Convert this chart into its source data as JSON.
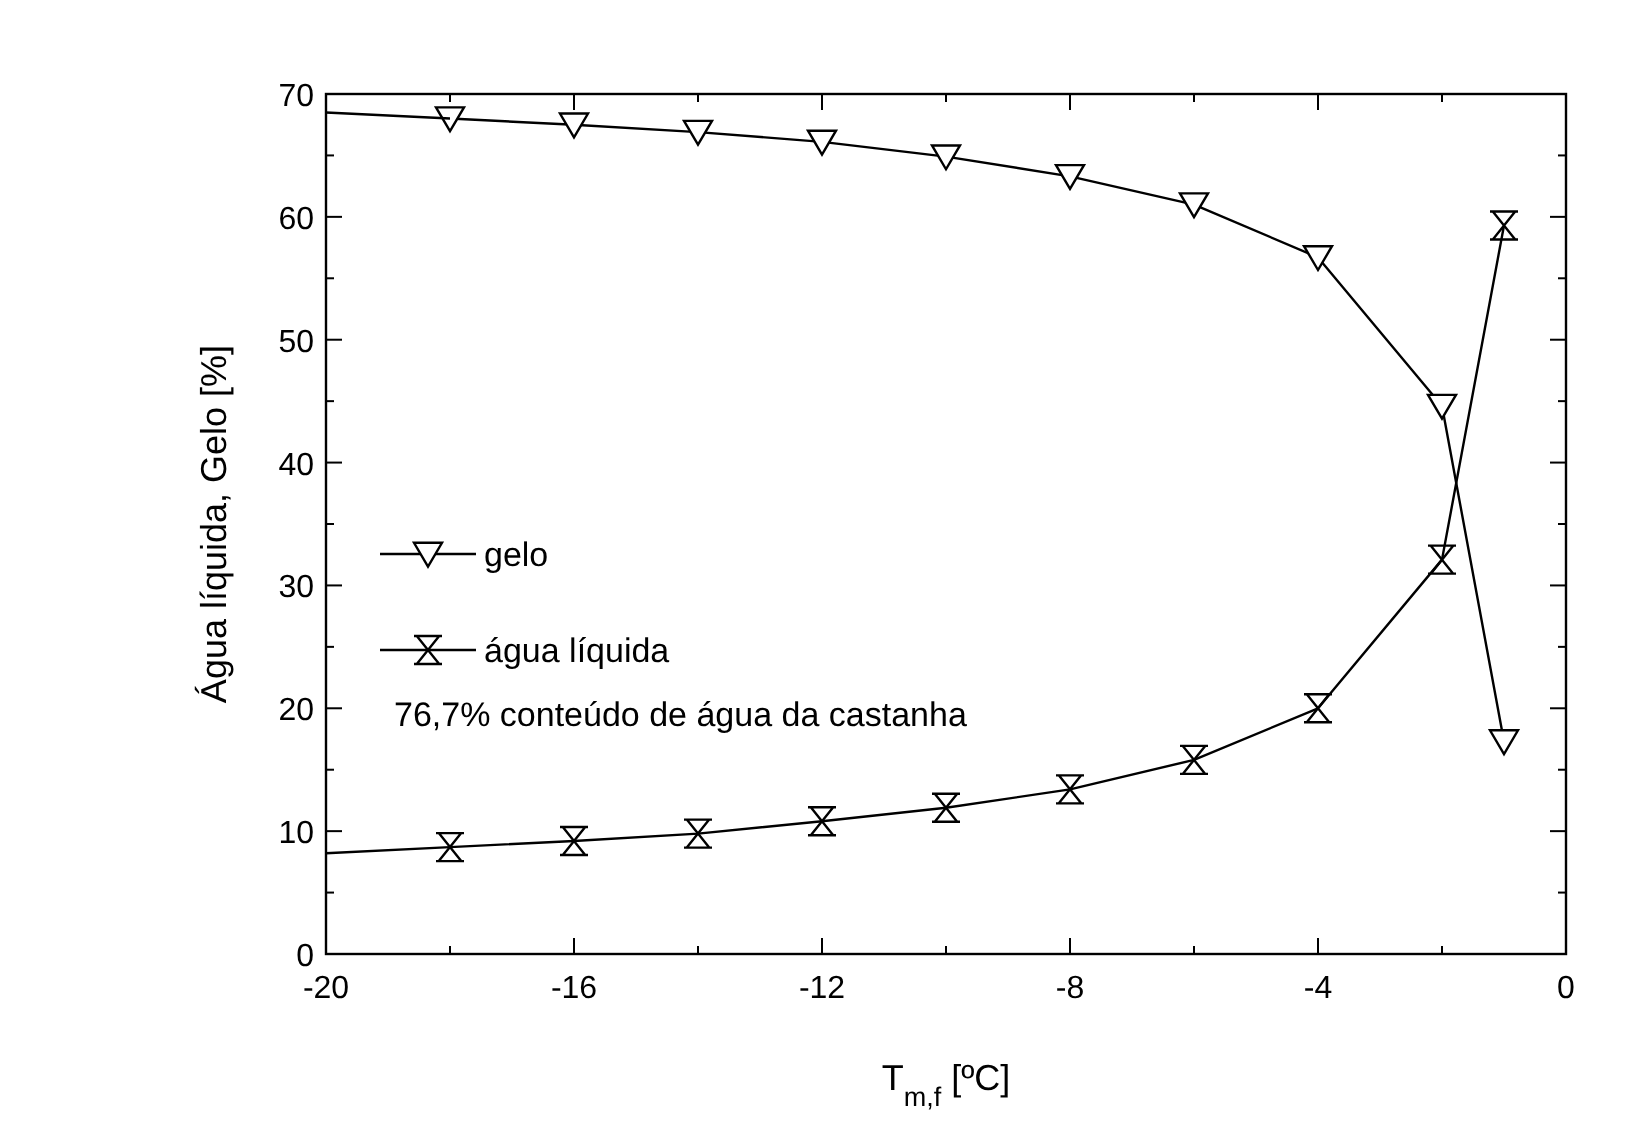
{
  "chart_data": {
    "type": "line",
    "xlabel": "T$_{m,f}$  [ºC]",
    "ylabel": "Água líquida, Gelo  [%]",
    "xlim": [
      -20,
      0
    ],
    "xticks": [
      -20,
      -16,
      -12,
      -8,
      -4,
      0
    ],
    "ylim": [
      0,
      70
    ],
    "yticks": [
      0,
      10,
      20,
      30,
      40,
      50,
      60,
      70
    ],
    "legend": "left",
    "grid": false,
    "annotations": [
      "76,7% conteúdo de água da castanha"
    ],
    "series": [
      {
        "name": "gelo",
        "color": "#000000",
        "marker": "triangle",
        "x": [
          -18,
          -16,
          -14,
          -12,
          -10,
          -8,
          -6,
          -4,
          -2,
          -1
        ],
        "values": [
          68.0,
          67.5,
          66.9,
          66.1,
          64.9,
          63.3,
          61.0,
          56.7,
          44.6,
          17.3
        ]
      },
      {
        "color": "#000000",
        "marker": "none",
        "x": [
          -20,
          -18
        ],
        "values": [
          68.5,
          68.0
        ]
      },
      {
        "name": "água líquida",
        "color": "#000000",
        "marker": "cross",
        "x": [
          -18,
          -16,
          -14,
          -12,
          -10,
          -8,
          -6,
          -4,
          -2,
          -1
        ],
        "values": [
          8.7,
          9.2,
          9.8,
          10.8,
          11.9,
          13.4,
          15.8,
          20.0,
          32.1,
          59.3
        ]
      },
      {
        "color": "#000000",
        "marker": "none",
        "x": [
          -20,
          -18
        ],
        "values": [
          8.2,
          8.7
        ]
      }
    ]
  }
}
